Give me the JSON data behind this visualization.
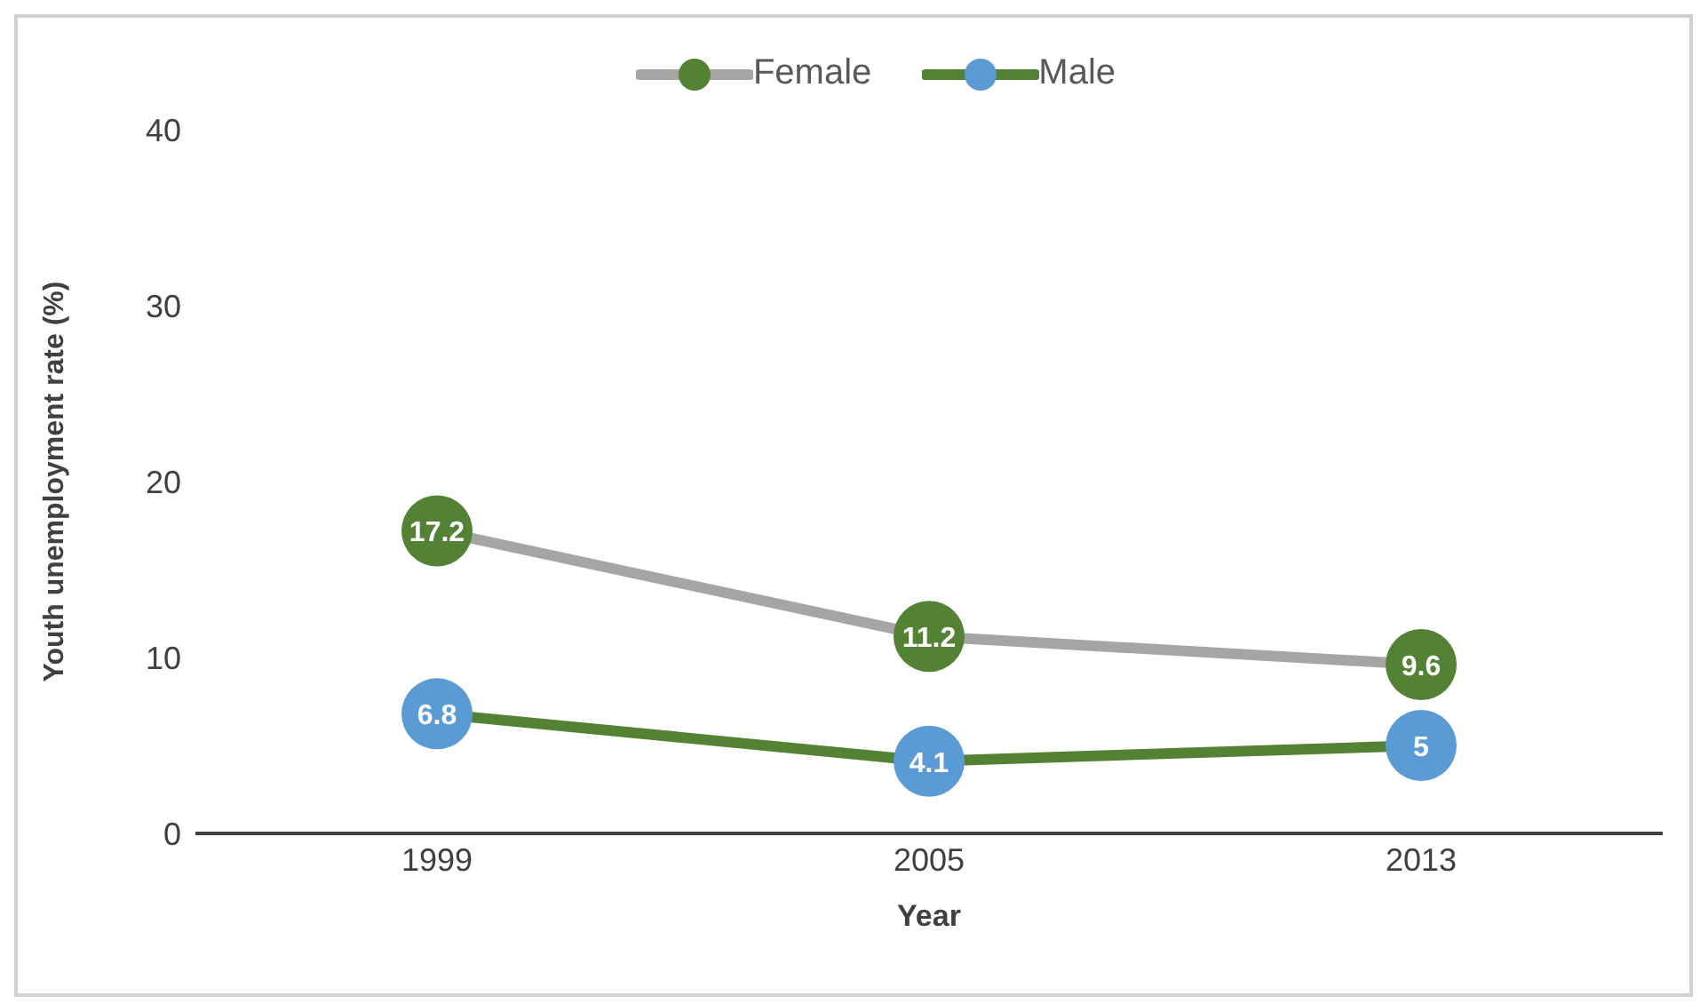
{
  "chart_data": {
    "type": "line",
    "xlabel": "Year",
    "ylabel": "Youth unemployment rate (%)",
    "categories": [
      "1999",
      "2005",
      "2013"
    ],
    "series": [
      {
        "name": "Female",
        "color": "#a5a5a5",
        "colors": [
          "#548235",
          "#548235",
          "#548235"
        ],
        "values": [
          17.2,
          11.2,
          9.6
        ]
      },
      {
        "name": "Male",
        "color": "#548235",
        "colors": [
          "#5b9bd5",
          "#5b9bd5",
          "#5b9bd5"
        ],
        "values": [
          6.8,
          4.1,
          5
        ]
      }
    ],
    "ylim": [
      0,
      40
    ],
    "yticks": [
      0,
      10,
      20,
      30,
      40
    ],
    "grid": false,
    "legend": "top",
    "marker": "circle",
    "line_style": "solid",
    "data_labels": true
  }
}
